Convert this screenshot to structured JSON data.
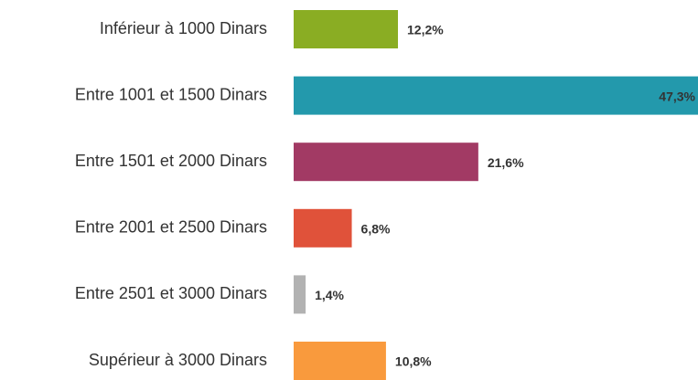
{
  "chart_data": {
    "type": "bar",
    "orientation": "horizontal",
    "categories": [
      "Inférieur à 1000 Dinars",
      "Entre 1001 et 1500 Dinars",
      "Entre 1501 et 2000 Dinars",
      "Entre 2001 et 2500 Dinars",
      "Entre 2501 et 3000 Dinars",
      "Supérieur à 3000 Dinars"
    ],
    "values": [
      12.2,
      47.3,
      21.6,
      6.8,
      1.4,
      10.8
    ],
    "value_labels": [
      "12,2%",
      "47,3%",
      "21,6%",
      "6,8%",
      "1,4%",
      "10,8%"
    ],
    "colors": [
      "#8aad23",
      "#2399ac",
      "#a23a64",
      "#e0523a",
      "#b2b2b2",
      "#f99a3d"
    ]
  }
}
